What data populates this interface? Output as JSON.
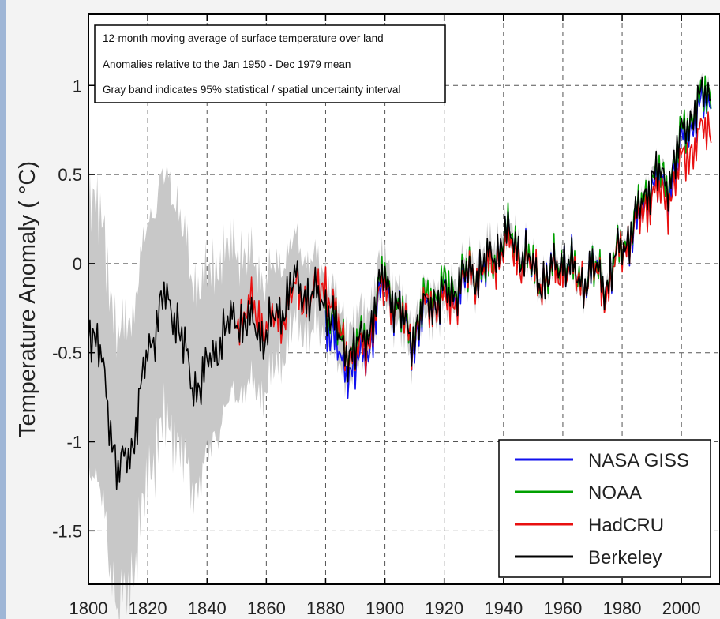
{
  "chart_data": {
    "type": "line",
    "title": "",
    "ylabel": "Temperature Anomaly ( °C)",
    "xlabel": "",
    "xlim": [
      1800,
      2013
    ],
    "ylim": [
      -1.8,
      1.4
    ],
    "xticks": [
      1800,
      1820,
      1840,
      1860,
      1880,
      1900,
      1920,
      1940,
      1960,
      1980,
      2000
    ],
    "yticks": [
      1,
      0.5,
      0,
      -0.5,
      -1,
      -1.5
    ],
    "ytick_labels": [
      "1",
      "0.5",
      "0",
      "-0.5",
      "-1",
      "-1.5"
    ],
    "grid": true,
    "annotation_lines": [
      "12-month moving average of surface temperature over land",
      "Anomalies relative to the Jan 1950 - Dec 1979 mean",
      "Gray band indicates 95% statistical / spatial uncertainty interval"
    ],
    "legend_position": "bottom-right",
    "uncertainty_band": {
      "series": "Berkeley",
      "color": "#c8c8c8",
      "x": [
        1800,
        1810,
        1820,
        1830,
        1840,
        1850,
        1860,
        1870,
        1880,
        1890,
        1900,
        1910,
        1920,
        1930,
        1940,
        1950,
        1960,
        1970,
        1980,
        1990,
        2000,
        2010
      ],
      "half_width": [
        0.75,
        0.75,
        0.7,
        0.65,
        0.5,
        0.4,
        0.3,
        0.22,
        0.18,
        0.15,
        0.12,
        0.1,
        0.09,
        0.08,
        0.07,
        0.06,
        0.05,
        0.05,
        0.04,
        0.04,
        0.04,
        0.04
      ]
    },
    "series": [
      {
        "name": "NASA GISS",
        "color": "#1010ee",
        "x": [
          1880,
          1885,
          1890,
          1895,
          1900,
          1905,
          1910,
          1915,
          1920,
          1925,
          1930,
          1935,
          1940,
          1945,
          1950,
          1955,
          1960,
          1965,
          1970,
          1975,
          1980,
          1985,
          1990,
          1995,
          2000,
          2005,
          2010
        ],
        "y": [
          -0.3,
          -0.55,
          -0.6,
          -0.45,
          -0.1,
          -0.3,
          -0.45,
          -0.2,
          -0.2,
          -0.15,
          -0.05,
          -0.05,
          0.15,
          0.1,
          -0.05,
          -0.1,
          0.05,
          -0.1,
          -0.05,
          -0.1,
          0.1,
          0.2,
          0.45,
          0.4,
          0.65,
          0.85,
          0.9
        ]
      },
      {
        "name": "NOAA",
        "color": "#00a000",
        "x": [
          1880,
          1885,
          1890,
          1895,
          1900,
          1905,
          1910,
          1915,
          1920,
          1925,
          1930,
          1935,
          1940,
          1945,
          1950,
          1955,
          1960,
          1965,
          1970,
          1975,
          1980,
          1985,
          1990,
          1995,
          2000,
          2005,
          2010
        ],
        "y": [
          -0.25,
          -0.4,
          -0.5,
          -0.35,
          -0.05,
          -0.3,
          -0.4,
          -0.15,
          -0.15,
          -0.1,
          -0.05,
          -0.05,
          0.15,
          0.1,
          -0.05,
          -0.1,
          0.05,
          -0.1,
          -0.05,
          -0.1,
          0.1,
          0.25,
          0.5,
          0.45,
          0.7,
          0.9,
          0.95
        ]
      },
      {
        "name": "HadCRU",
        "color": "#e81010",
        "x": [
          1850,
          1855,
          1860,
          1865,
          1870,
          1875,
          1880,
          1885,
          1890,
          1895,
          1900,
          1905,
          1910,
          1915,
          1920,
          1925,
          1930,
          1935,
          1940,
          1945,
          1950,
          1955,
          1960,
          1965,
          1970,
          1975,
          1980,
          1985,
          1990,
          1995,
          2000,
          2005,
          2010
        ],
        "y": [
          -0.3,
          -0.25,
          -0.35,
          -0.3,
          -0.15,
          -0.2,
          -0.1,
          -0.4,
          -0.55,
          -0.4,
          -0.1,
          -0.3,
          -0.4,
          -0.2,
          -0.25,
          -0.15,
          -0.05,
          -0.05,
          0.1,
          0.05,
          -0.05,
          -0.1,
          0.0,
          -0.1,
          -0.05,
          -0.15,
          0.1,
          0.2,
          0.4,
          0.35,
          0.55,
          0.7,
          0.75
        ]
      },
      {
        "name": "Berkeley",
        "color": "#000000",
        "x": [
          1800,
          1805,
          1810,
          1815,
          1820,
          1825,
          1830,
          1835,
          1840,
          1845,
          1850,
          1855,
          1860,
          1865,
          1870,
          1875,
          1880,
          1885,
          1890,
          1895,
          1900,
          1905,
          1910,
          1915,
          1920,
          1925,
          1930,
          1935,
          1940,
          1945,
          1950,
          1955,
          1960,
          1965,
          1970,
          1975,
          1980,
          1985,
          1990,
          1995,
          2000,
          2005,
          2010
        ],
        "y": [
          -0.3,
          -0.6,
          -1.2,
          -1.0,
          -0.5,
          -0.2,
          -0.3,
          -0.7,
          -0.6,
          -0.4,
          -0.3,
          -0.35,
          -0.4,
          -0.25,
          -0.1,
          -0.2,
          -0.2,
          -0.45,
          -0.5,
          -0.35,
          -0.05,
          -0.3,
          -0.4,
          -0.2,
          -0.2,
          -0.1,
          -0.05,
          0.0,
          0.15,
          0.1,
          -0.05,
          -0.1,
          0.05,
          -0.1,
          -0.05,
          -0.1,
          0.1,
          0.25,
          0.5,
          0.45,
          0.7,
          0.9,
          0.95
        ]
      }
    ]
  }
}
